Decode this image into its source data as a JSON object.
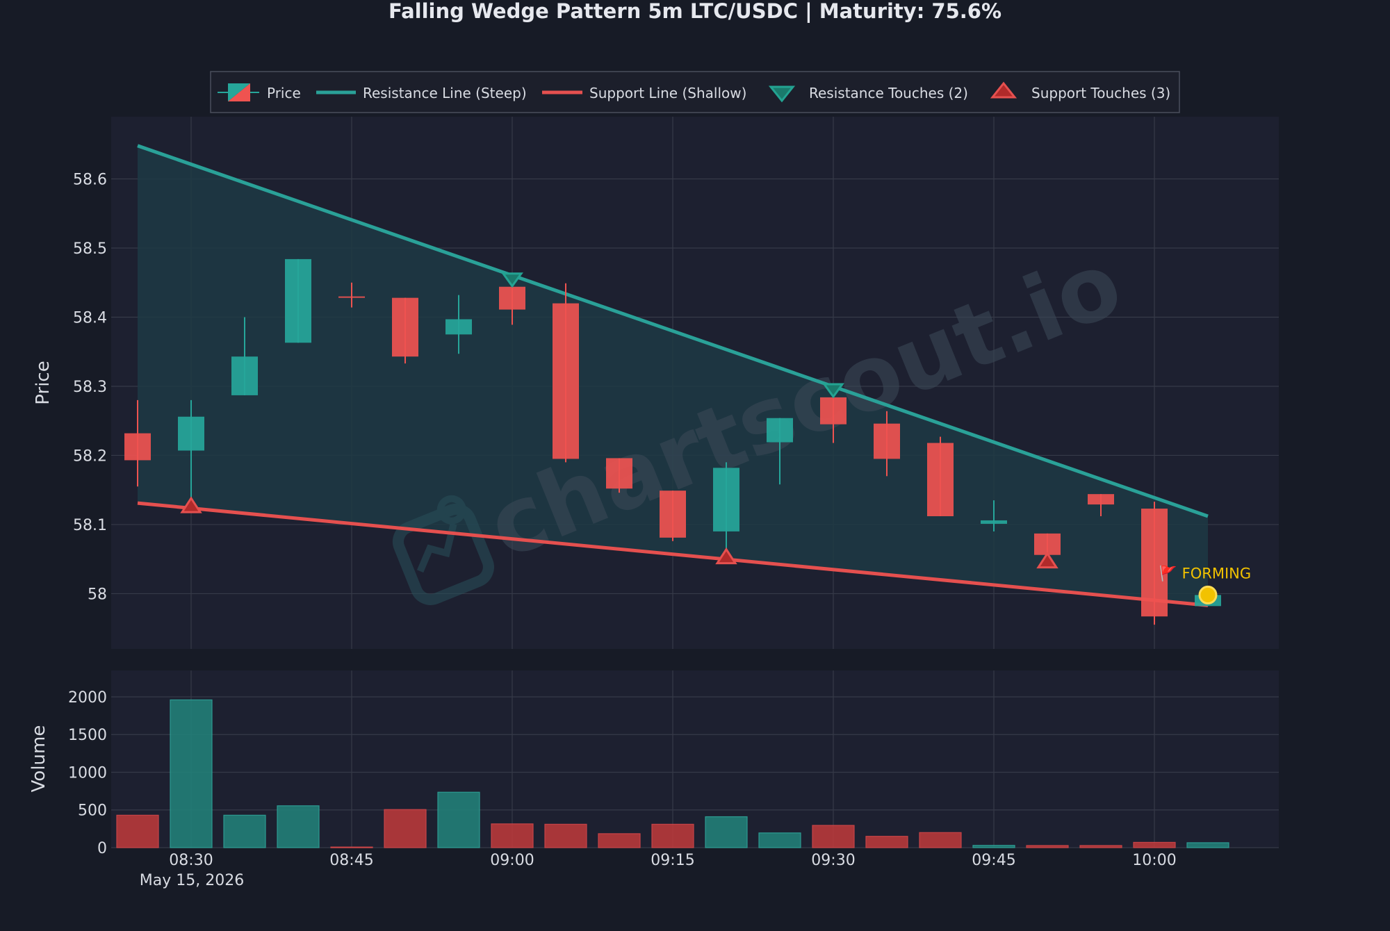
{
  "chart_data": {
    "title": "Falling Wedge Pattern 5m LTC/USDC | Maturity: 75.6%",
    "type": "candlestick",
    "date_label": "May 15, 2026",
    "x_labels": [
      "08:30",
      "08:45",
      "09:00",
      "09:15",
      "09:30",
      "09:45",
      "10:00"
    ],
    "price_axis": {
      "label": "Price",
      "ticks": [
        58,
        58.1,
        58.2,
        58.3,
        58.4,
        58.5,
        58.6
      ],
      "ylim": [
        57.92,
        58.69
      ]
    },
    "volume_axis": {
      "label": "Volume",
      "ticks": [
        0,
        500,
        1000,
        1500,
        2000
      ],
      "ylim": [
        0,
        2350
      ]
    },
    "legend": {
      "price": "Price",
      "resistance": "Resistance Line (Steep)",
      "support": "Support Line (Shallow)",
      "resistance_touches": "Resistance Touches (2)",
      "support_touches": "Support Touches (3)"
    },
    "candles": [
      {
        "time": "08:25",
        "open": 58.232,
        "high": 58.28,
        "low": 58.155,
        "close": 58.193,
        "volume": 430
      },
      {
        "time": "08:30",
        "open": 58.207,
        "high": 58.28,
        "low": 58.125,
        "close": 58.256,
        "volume": 1960
      },
      {
        "time": "08:35",
        "open": 58.287,
        "high": 58.4,
        "low": 58.287,
        "close": 58.343,
        "volume": 430
      },
      {
        "time": "08:40",
        "open": 58.363,
        "high": 58.484,
        "low": 58.363,
        "close": 58.484,
        "volume": 555
      },
      {
        "time": "08:45",
        "open": 58.43,
        "high": 58.45,
        "low": 58.414,
        "close": 58.429,
        "volume": 8
      },
      {
        "time": "08:50",
        "open": 58.428,
        "high": 58.428,
        "low": 58.333,
        "close": 58.343,
        "volume": 505
      },
      {
        "time": "08:55",
        "open": 58.375,
        "high": 58.432,
        "low": 58.347,
        "close": 58.397,
        "volume": 735
      },
      {
        "time": "09:00",
        "open": 58.444,
        "high": 58.444,
        "low": 58.389,
        "close": 58.411,
        "volume": 315
      },
      {
        "time": "09:05",
        "open": 58.42,
        "high": 58.449,
        "low": 58.19,
        "close": 58.195,
        "volume": 310
      },
      {
        "time": "09:10",
        "open": 58.196,
        "high": 58.196,
        "low": 58.146,
        "close": 58.152,
        "volume": 185
      },
      {
        "time": "09:15",
        "open": 58.149,
        "high": 58.149,
        "low": 58.076,
        "close": 58.081,
        "volume": 310
      },
      {
        "time": "09:20",
        "open": 58.09,
        "high": 58.19,
        "low": 58.06,
        "close": 58.182,
        "volume": 410
      },
      {
        "time": "09:25",
        "open": 58.219,
        "high": 58.254,
        "low": 58.158,
        "close": 58.254,
        "volume": 195
      },
      {
        "time": "09:30",
        "open": 58.284,
        "high": 58.284,
        "low": 58.218,
        "close": 58.245,
        "volume": 295
      },
      {
        "time": "09:35",
        "open": 58.246,
        "high": 58.264,
        "low": 58.17,
        "close": 58.195,
        "volume": 150
      },
      {
        "time": "09:40",
        "open": 58.218,
        "high": 58.227,
        "low": 58.112,
        "close": 58.112,
        "volume": 200
      },
      {
        "time": "09:45",
        "open": 58.101,
        "high": 58.135,
        "low": 58.09,
        "close": 58.106,
        "volume": 30
      },
      {
        "time": "09:50",
        "open": 58.087,
        "high": 58.087,
        "low": 58.056,
        "close": 58.056,
        "volume": 28
      },
      {
        "time": "09:55",
        "open": 58.144,
        "high": 58.144,
        "low": 58.112,
        "close": 58.129,
        "volume": 28
      },
      {
        "time": "10:00",
        "open": 58.123,
        "high": 58.133,
        "low": 57.955,
        "close": 57.967,
        "volume": 70
      },
      {
        "time": "10:05",
        "open": 57.982,
        "high": 58.003,
        "low": 57.982,
        "close": 57.998,
        "volume": 65
      }
    ],
    "resistance_line": [
      {
        "time": "08:25",
        "price": 58.648
      },
      {
        "time": "10:05",
        "price": 58.112
      }
    ],
    "support_line": [
      {
        "time": "08:25",
        "price": 58.131
      },
      {
        "time": "10:05",
        "price": 57.983
      }
    ],
    "resistance_touches": [
      {
        "time": "09:00",
        "price": 58.455
      },
      {
        "time": "09:30",
        "price": 58.295
      }
    ],
    "support_touches": [
      {
        "time": "08:30",
        "price": 58.126
      },
      {
        "time": "09:20",
        "price": 58.052
      },
      {
        "time": "09:50",
        "price": 58.046
      }
    ],
    "status_marker": {
      "time": "10:05",
      "price": 57.998,
      "label": "🚩 FORMING"
    },
    "watermark": "chartscout.io",
    "colors": {
      "background": "#171b26",
      "panel": "#1d2030",
      "grid": "#363a48",
      "up": "#26a69a",
      "down": "#ef5350",
      "resistance": "#2aa198",
      "support": "#e5504f",
      "wedge_fill": "#1d3a44",
      "forming": "#f2c200"
    }
  }
}
